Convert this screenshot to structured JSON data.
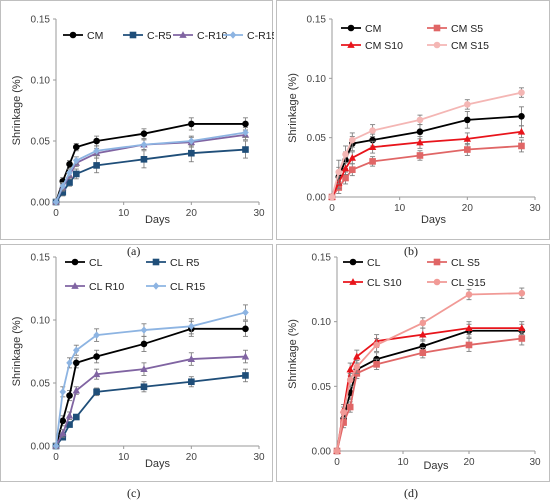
{
  "chart_data": [
    {
      "type": "line",
      "panel_label": "(a)",
      "xlabel": "Days",
      "ylabel": "Shrinkage (%)",
      "xlim": [
        0,
        30
      ],
      "ylim": [
        0,
        0.15
      ],
      "x_ticks": [
        "0",
        "10",
        "20",
        "30"
      ],
      "y_ticks": [
        "0.00",
        "0.05",
        "0.10",
        "0.15"
      ],
      "grid": "none",
      "legend_placement": "top",
      "x": [
        0,
        1,
        2,
        3,
        6,
        13,
        20,
        28
      ],
      "series": [
        {
          "name": "CM",
          "color": "#000000",
          "marker": "circle",
          "values": [
            0,
            0.017,
            0.031,
            0.045,
            0.05,
            0.056,
            0.064,
            0.064
          ],
          "errors": [
            0.002,
            0.003,
            0.003,
            0.003,
            0.004,
            0.004,
            0.005,
            0.005
          ]
        },
        {
          "name": "C-R5",
          "color": "#1f4e79",
          "marker": "square",
          "values": [
            0,
            0.008,
            0.016,
            0.023,
            0.03,
            0.035,
            0.04,
            0.043
          ],
          "errors": [
            0.002,
            0.003,
            0.003,
            0.004,
            0.006,
            0.007,
            0.007,
            0.007
          ]
        },
        {
          "name": "C-R10",
          "color": "#8064a2",
          "marker": "triangle",
          "values": [
            0,
            0.012,
            0.022,
            0.032,
            0.04,
            0.047,
            0.049,
            0.055
          ],
          "errors": [
            0.002,
            0.003,
            0.003,
            0.003,
            0.004,
            0.004,
            0.004,
            0.004
          ]
        },
        {
          "name": "C-R15",
          "color": "#8db4e2",
          "marker": "diamond",
          "values": [
            0,
            0.013,
            0.024,
            0.034,
            0.042,
            0.047,
            0.05,
            0.057
          ],
          "errors": [
            0.002,
            0.003,
            0.003,
            0.003,
            0.004,
            0.004,
            0.004,
            0.004
          ]
        }
      ]
    },
    {
      "type": "line",
      "panel_label": "(b)",
      "xlabel": "Days",
      "ylabel": "Shrinkage (%)",
      "xlim": [
        0,
        30
      ],
      "ylim": [
        0,
        0.15
      ],
      "x_ticks": [
        "0",
        "10",
        "20",
        "30"
      ],
      "y_ticks": [
        "0.00",
        "0.05",
        "0.10",
        "0.15"
      ],
      "grid": "none",
      "legend_placement": "top",
      "x": [
        0,
        1,
        2,
        3,
        6,
        13,
        20,
        28
      ],
      "series": [
        {
          "name": "CM",
          "color": "#000000",
          "marker": "circle",
          "values": [
            0,
            0.017,
            0.031,
            0.045,
            0.048,
            0.055,
            0.065,
            0.068
          ],
          "errors": [
            0.002,
            0.008,
            0.007,
            0.006,
            0.005,
            0.006,
            0.007,
            0.008
          ]
        },
        {
          "name": "CM S5",
          "color": "#e06666",
          "marker": "square",
          "values": [
            0,
            0.008,
            0.016,
            0.023,
            0.03,
            0.035,
            0.04,
            0.043
          ],
          "errors": [
            0.002,
            0.005,
            0.005,
            0.005,
            0.004,
            0.004,
            0.005,
            0.005
          ]
        },
        {
          "name": "CM S10",
          "color": "#e8141b",
          "marker": "triangle",
          "values": [
            0,
            0.012,
            0.024,
            0.033,
            0.042,
            0.046,
            0.049,
            0.055
          ],
          "errors": [
            0.002,
            0.005,
            0.005,
            0.005,
            0.005,
            0.005,
            0.005,
            0.005
          ]
        },
        {
          "name": "CM S15",
          "color": "#f4b6b4",
          "marker": "circle",
          "values": [
            0,
            0.021,
            0.036,
            0.048,
            0.056,
            0.065,
            0.078,
            0.088
          ],
          "errors": [
            0.002,
            0.01,
            0.007,
            0.006,
            0.005,
            0.004,
            0.004,
            0.004
          ]
        }
      ]
    },
    {
      "type": "line",
      "panel_label": "(c)",
      "xlabel": "Days",
      "ylabel": "Shrinkage (%)",
      "xlim": [
        0,
        30
      ],
      "ylim": [
        0,
        0.15
      ],
      "x_ticks": [
        "0",
        "10",
        "20",
        "30"
      ],
      "y_ticks": [
        "0.00",
        "0.05",
        "0.10",
        "0.15"
      ],
      "grid": "none",
      "legend_placement": "top",
      "x": [
        0,
        1,
        2,
        3,
        6,
        13,
        20,
        28
      ],
      "series": [
        {
          "name": "CL",
          "color": "#000000",
          "marker": "circle",
          "values": [
            0,
            0.02,
            0.04,
            0.066,
            0.071,
            0.081,
            0.093,
            0.093
          ],
          "errors": [
            0.002,
            0.004,
            0.004,
            0.004,
            0.005,
            0.006,
            0.006,
            0.006
          ]
        },
        {
          "name": "CL R5",
          "color": "#1f4e79",
          "marker": "square",
          "values": [
            0,
            0.007,
            0.017,
            0.023,
            0.043,
            0.047,
            0.051,
            0.056
          ],
          "errors": [
            0.002,
            0.002,
            0.002,
            0.002,
            0.003,
            0.004,
            0.004,
            0.005
          ]
        },
        {
          "name": "CL R10",
          "color": "#8064a2",
          "marker": "triangle",
          "values": [
            0,
            0.01,
            0.024,
            0.044,
            0.057,
            0.061,
            0.069,
            0.071
          ],
          "errors": [
            0.002,
            0.003,
            0.003,
            0.003,
            0.004,
            0.005,
            0.005,
            0.005
          ]
        },
        {
          "name": "CL R15",
          "color": "#8db4e2",
          "marker": "diamond",
          "values": [
            0,
            0.043,
            0.066,
            0.076,
            0.088,
            0.092,
            0.095,
            0.106
          ],
          "errors": [
            0.002,
            0.004,
            0.004,
            0.004,
            0.005,
            0.005,
            0.006,
            0.006
          ]
        }
      ]
    },
    {
      "type": "line",
      "panel_label": "(d)",
      "xlabel": "Days",
      "ylabel": "Shrinkage (%)",
      "xlim": [
        0,
        30
      ],
      "ylim": [
        0,
        0.15
      ],
      "x_ticks": [
        "0",
        "10",
        "20",
        "30"
      ],
      "y_ticks": [
        "0.00",
        "0.05",
        "0.10",
        "0.15"
      ],
      "grid": "none",
      "legend_placement": "top",
      "x": [
        0,
        1,
        2,
        3,
        6,
        13,
        20,
        28
      ],
      "series": [
        {
          "name": "CL",
          "color": "#000000",
          "marker": "circle",
          "values": [
            0,
            0.025,
            0.045,
            0.063,
            0.071,
            0.081,
            0.093,
            0.093
          ],
          "errors": [
            0.002,
            0.005,
            0.005,
            0.005,
            0.005,
            0.005,
            0.005,
            0.005
          ]
        },
        {
          "name": "CL S5",
          "color": "#e06666",
          "marker": "square",
          "values": [
            0,
            0.022,
            0.034,
            0.06,
            0.067,
            0.076,
            0.082,
            0.087
          ],
          "errors": [
            0.002,
            0.004,
            0.004,
            0.004,
            0.004,
            0.004,
            0.005,
            0.005
          ]
        },
        {
          "name": "CL S10",
          "color": "#e8141b",
          "marker": "triangle",
          "values": [
            0,
            0.032,
            0.063,
            0.073,
            0.085,
            0.09,
            0.095,
            0.095
          ],
          "errors": [
            0.002,
            0.004,
            0.005,
            0.005,
            0.005,
            0.005,
            0.005,
            0.005
          ]
        },
        {
          "name": "CL S15",
          "color": "#f19a96",
          "marker": "circle",
          "values": [
            0,
            0.03,
            0.055,
            0.065,
            0.082,
            0.099,
            0.121,
            0.122
          ],
          "errors": [
            0.002,
            0.004,
            0.005,
            0.005,
            0.005,
            0.004,
            0.004,
            0.004
          ]
        }
      ]
    }
  ]
}
